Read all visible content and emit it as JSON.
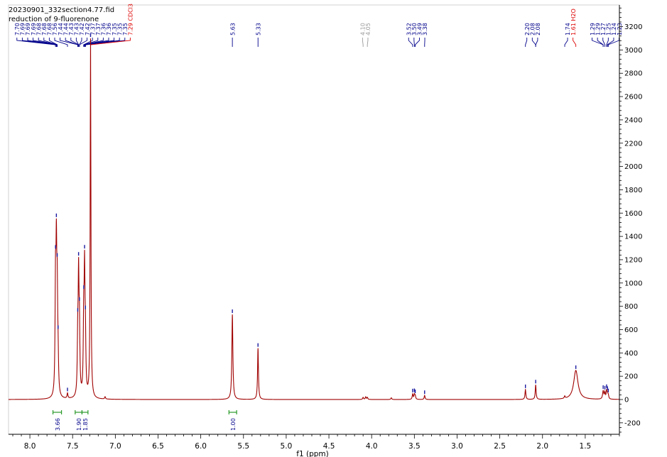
{
  "header": {
    "filename": "20230901_332section4.77.fid",
    "subtitle": "reduction of 9-fluorenone"
  },
  "chart_data": {
    "type": "line",
    "title": "20230901_332section4.77.fid",
    "subtitle": "reduction of 9-fluorenone",
    "xlabel": "f1 (ppm)",
    "ylabel": "",
    "xlim": [
      8.25,
      1.1
    ],
    "ylim": [
      -300,
      3400
    ],
    "x_axis_reversed": true,
    "xticks": [
      "8.0",
      "7.5",
      "7.0",
      "6.5",
      "6.0",
      "5.5",
      "5.0",
      "4.5",
      "4.0",
      "3.5",
      "3.0",
      "2.5",
      "2.0",
      "1.5"
    ],
    "yticks": [
      "3200",
      "3000",
      "2800",
      "2600",
      "2400",
      "2200",
      "2000",
      "1800",
      "1600",
      "1400",
      "1200",
      "1000",
      "800",
      "600",
      "400",
      "200",
      "0",
      "-200"
    ],
    "grid": false,
    "line_color": "#a00000",
    "peaks": [
      {
        "ppm": 7.7,
        "height": 920,
        "width": 0.006
      },
      {
        "ppm": 7.69,
        "height": 1080,
        "width": 0.006
      },
      {
        "ppm": 7.68,
        "height": 780,
        "width": 0.006
      },
      {
        "ppm": 7.67,
        "height": 260,
        "width": 0.006
      },
      {
        "ppm": 7.56,
        "height": 45,
        "width": 0.006
      },
      {
        "ppm": 7.44,
        "height": 430,
        "width": 0.006
      },
      {
        "ppm": 7.43,
        "height": 950,
        "width": 0.006
      },
      {
        "ppm": 7.42,
        "height": 520,
        "width": 0.006
      },
      {
        "ppm": 7.37,
        "height": 610,
        "width": 0.006
      },
      {
        "ppm": 7.36,
        "height": 980,
        "width": 0.006
      },
      {
        "ppm": 7.35,
        "height": 420,
        "width": 0.006
      },
      {
        "ppm": 7.29,
        "height": 3080,
        "width": 0.005
      },
      {
        "ppm": 7.12,
        "height": 20,
        "width": 0.006
      },
      {
        "ppm": 5.63,
        "height": 730,
        "width": 0.007
      },
      {
        "ppm": 5.33,
        "height": 440,
        "width": 0.006
      },
      {
        "ppm": 4.1,
        "height": 18,
        "width": 0.006
      },
      {
        "ppm": 4.07,
        "height": 22,
        "width": 0.006
      },
      {
        "ppm": 4.05,
        "height": 18,
        "width": 0.006
      },
      {
        "ppm": 3.77,
        "height": 15,
        "width": 0.006
      },
      {
        "ppm": 3.52,
        "height": 45,
        "width": 0.006
      },
      {
        "ppm": 3.5,
        "height": 40,
        "width": 0.006
      },
      {
        "ppm": 3.49,
        "height": 30,
        "width": 0.006
      },
      {
        "ppm": 3.38,
        "height": 35,
        "width": 0.006
      },
      {
        "ppm": 2.2,
        "height": 85,
        "width": 0.006
      },
      {
        "ppm": 2.08,
        "height": 125,
        "width": 0.006
      },
      {
        "ppm": 1.74,
        "height": 20,
        "width": 0.006
      },
      {
        "ppm": 1.61,
        "height": 250,
        "width": 0.03
      },
      {
        "ppm": 1.29,
        "height": 70,
        "width": 0.008
      },
      {
        "ppm": 1.27,
        "height": 55,
        "width": 0.006
      },
      {
        "ppm": 1.25,
        "height": 65,
        "width": 0.006
      },
      {
        "ppm": 1.24,
        "height": 40,
        "width": 0.006
      },
      {
        "ppm": 1.23,
        "height": 30,
        "width": 0.006
      }
    ],
    "peak_labels": [
      {
        "text": "7.70",
        "ppm": 7.7,
        "color": "#00008b"
      },
      {
        "text": "7.69",
        "ppm": 7.69,
        "color": "#00008b"
      },
      {
        "text": "7.69",
        "ppm": 7.69,
        "color": "#00008b"
      },
      {
        "text": "7.69",
        "ppm": 7.69,
        "color": "#00008b"
      },
      {
        "text": "7.68",
        "ppm": 7.68,
        "color": "#00008b"
      },
      {
        "text": "7.68",
        "ppm": 7.68,
        "color": "#00008b"
      },
      {
        "text": "7.68",
        "ppm": 7.68,
        "color": "#00008b"
      },
      {
        "text": "7.56",
        "ppm": 7.56,
        "color": "#00008b"
      },
      {
        "text": "7.44",
        "ppm": 7.44,
        "color": "#00008b"
      },
      {
        "text": "7.44",
        "ppm": 7.44,
        "color": "#00008b"
      },
      {
        "text": "7.43",
        "ppm": 7.43,
        "color": "#00008b"
      },
      {
        "text": "7.43",
        "ppm": 7.43,
        "color": "#00008b"
      },
      {
        "text": "7.42",
        "ppm": 7.42,
        "color": "#00008b"
      },
      {
        "text": "7.42",
        "ppm": 7.42,
        "color": "#00008b"
      },
      {
        "text": "7.37",
        "ppm": 7.37,
        "color": "#00008b"
      },
      {
        "text": "7.37",
        "ppm": 7.37,
        "color": "#00008b"
      },
      {
        "text": "7.36",
        "ppm": 7.36,
        "color": "#00008b"
      },
      {
        "text": "7.36",
        "ppm": 7.36,
        "color": "#00008b"
      },
      {
        "text": "7.35",
        "ppm": 7.35,
        "color": "#00008b"
      },
      {
        "text": "7.35",
        "ppm": 7.35,
        "color": "#00008b"
      },
      {
        "text": "7.35",
        "ppm": 7.35,
        "color": "#00008b"
      },
      {
        "text": "7.29 CDCl3",
        "ppm": 7.29,
        "color": "#dd0000"
      },
      {
        "text": "5.63",
        "ppm": 5.63,
        "color": "#00008b"
      },
      {
        "text": "5.33",
        "ppm": 5.33,
        "color": "#00008b"
      },
      {
        "text": "4.10",
        "ppm": 4.1,
        "color": "#999999"
      },
      {
        "text": "4.05",
        "ppm": 4.05,
        "color": "#999999"
      },
      {
        "text": "3.52",
        "ppm": 3.52,
        "color": "#00008b"
      },
      {
        "text": "3.50",
        "ppm": 3.5,
        "color": "#00008b"
      },
      {
        "text": "3.49",
        "ppm": 3.49,
        "color": "#00008b"
      },
      {
        "text": "3.38",
        "ppm": 3.38,
        "color": "#00008b"
      },
      {
        "text": "2.20",
        "ppm": 2.2,
        "color": "#00008b"
      },
      {
        "text": "2.08",
        "ppm": 2.08,
        "color": "#00008b"
      },
      {
        "text": "2.08",
        "ppm": 2.08,
        "color": "#00008b"
      },
      {
        "text": "1.74",
        "ppm": 1.74,
        "color": "#00008b"
      },
      {
        "text": "1.61 H2O",
        "ppm": 1.61,
        "color": "#dd0000"
      },
      {
        "text": "1.29",
        "ppm": 1.29,
        "color": "#00008b"
      },
      {
        "text": "1.29",
        "ppm": 1.29,
        "color": "#00008b"
      },
      {
        "text": "1.27",
        "ppm": 1.27,
        "color": "#00008b"
      },
      {
        "text": "1.25",
        "ppm": 1.25,
        "color": "#00008b"
      },
      {
        "text": "1.24",
        "ppm": 1.24,
        "color": "#00008b"
      },
      {
        "text": "1.23",
        "ppm": 1.23,
        "color": "#00008b"
      }
    ],
    "integrals": [
      {
        "from": 7.73,
        "to": 7.63,
        "value": "3.66"
      },
      {
        "from": 7.47,
        "to": 7.39,
        "value": "1.90"
      },
      {
        "from": 7.39,
        "to": 7.32,
        "value": "1.85"
      },
      {
        "from": 5.67,
        "to": 5.58,
        "value": "1.00"
      }
    ]
  }
}
